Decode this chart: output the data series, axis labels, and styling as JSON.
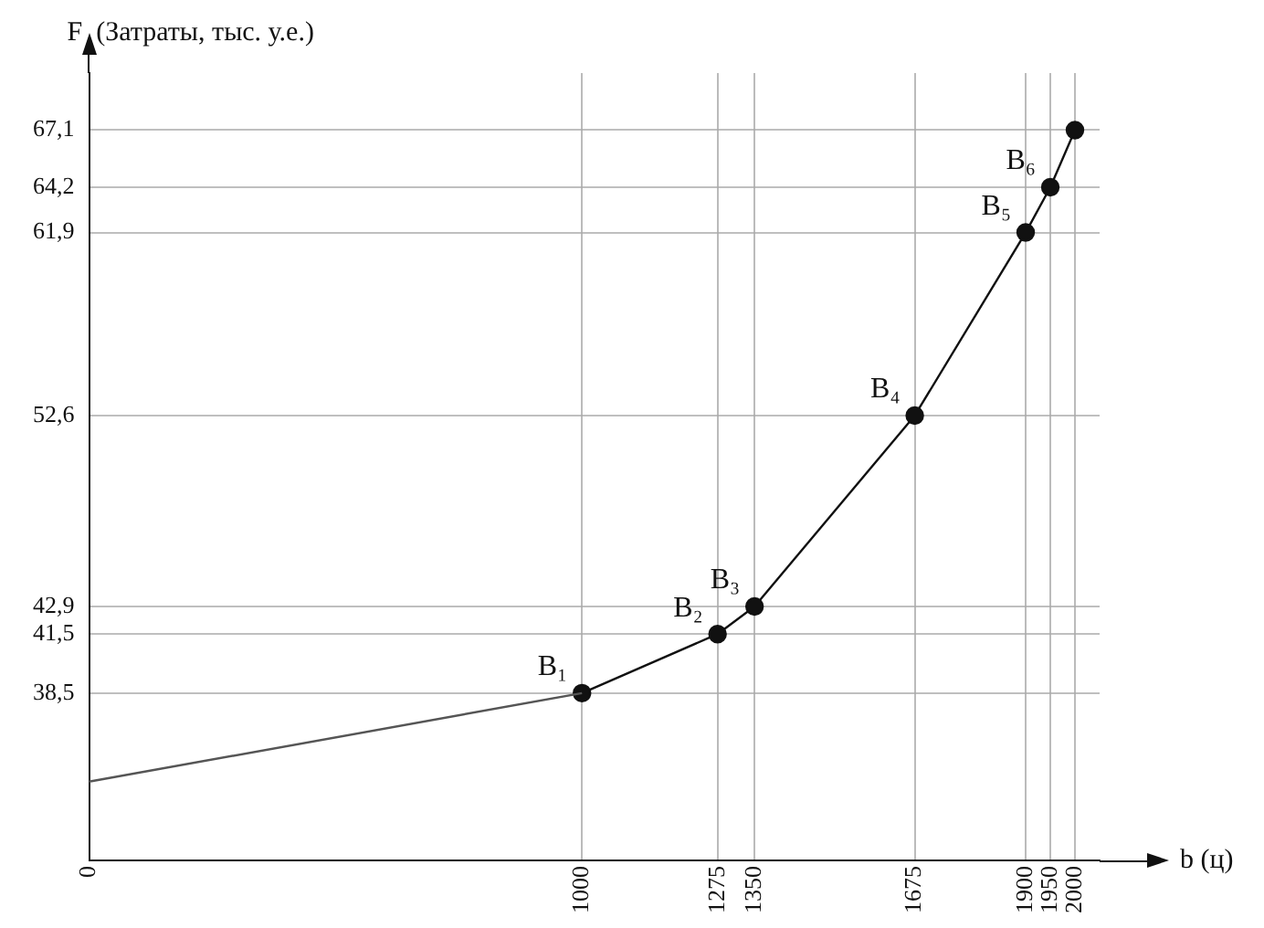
{
  "chart_data": {
    "type": "line",
    "ylabel": "F  (Затраты, тыс. у.е.)",
    "xlabel": "b (ц)",
    "xlim": [
      0,
      2050
    ],
    "xticks": [
      0,
      1000,
      1275,
      1350,
      1675,
      1900,
      1950,
      2000
    ],
    "ylim": [
      30,
      70
    ],
    "yticks": [
      {
        "value": 38.5,
        "label": "38,5"
      },
      {
        "value": 41.5,
        "label": "41,5"
      },
      {
        "value": 42.9,
        "label": "42,9"
      },
      {
        "value": 52.6,
        "label": "52,6"
      },
      {
        "value": 61.9,
        "label": "61,9"
      },
      {
        "value": 64.2,
        "label": "64,2"
      },
      {
        "value": 67.1,
        "label": "67,1"
      }
    ],
    "grid": true,
    "legend": false,
    "line_style": "solid",
    "series": [
      {
        "color": "#555555",
        "x": [
          0,
          1000
        ],
        "values": [
          34,
          38.5
        ],
        "marker": "none"
      },
      {
        "color": "#111111",
        "x": [
          1000,
          1275,
          1350,
          1675,
          1900,
          1950,
          2000
        ],
        "values": [
          38.5,
          41.5,
          42.9,
          52.6,
          61.9,
          64.2,
          67.1
        ],
        "marker": "circle"
      }
    ],
    "annotations": [
      {
        "text": "B₁",
        "x": 1000,
        "y": 38.5
      },
      {
        "text": "B₂",
        "x": 1275,
        "y": 41.5
      },
      {
        "text": "B₃",
        "x": 1350,
        "y": 42.9
      },
      {
        "text": "B₄",
        "x": 1675,
        "y": 52.6
      },
      {
        "text": "B₅",
        "x": 1900,
        "y": 61.9
      },
      {
        "text": "B₆",
        "x": 1950,
        "y": 64.2
      }
    ]
  }
}
